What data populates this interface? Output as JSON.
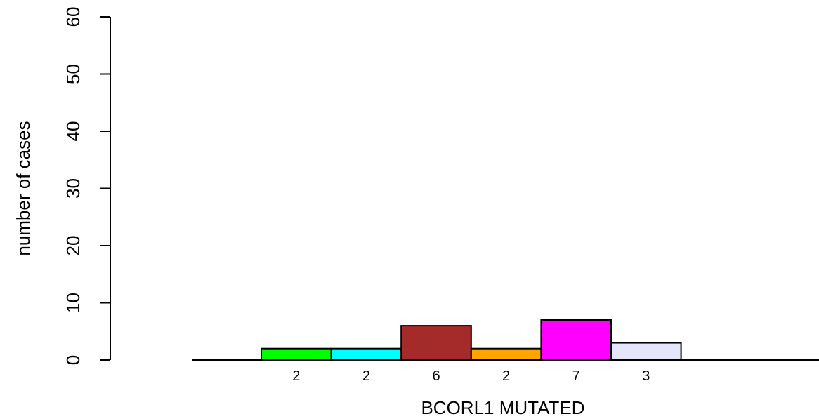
{
  "chart_data": {
    "type": "bar",
    "xlabel": "BCORL1 MUTATED",
    "ylabel": "number of cases",
    "ylim": [
      0,
      60
    ],
    "yticks": [
      0,
      10,
      20,
      30,
      40,
      50,
      60
    ],
    "grid": false,
    "bars": [
      {
        "value": 2,
        "label": "2",
        "color": "#00ff00"
      },
      {
        "value": 2,
        "label": "2",
        "color": "#00ffff"
      },
      {
        "value": 6,
        "label": "6",
        "color": "#a52a2a"
      },
      {
        "value": 2,
        "label": "2",
        "color": "#ffa500"
      },
      {
        "value": 7,
        "label": "7",
        "color": "#ff00ff"
      },
      {
        "value": 3,
        "label": "3",
        "color": "#e6e6fa"
      }
    ]
  }
}
